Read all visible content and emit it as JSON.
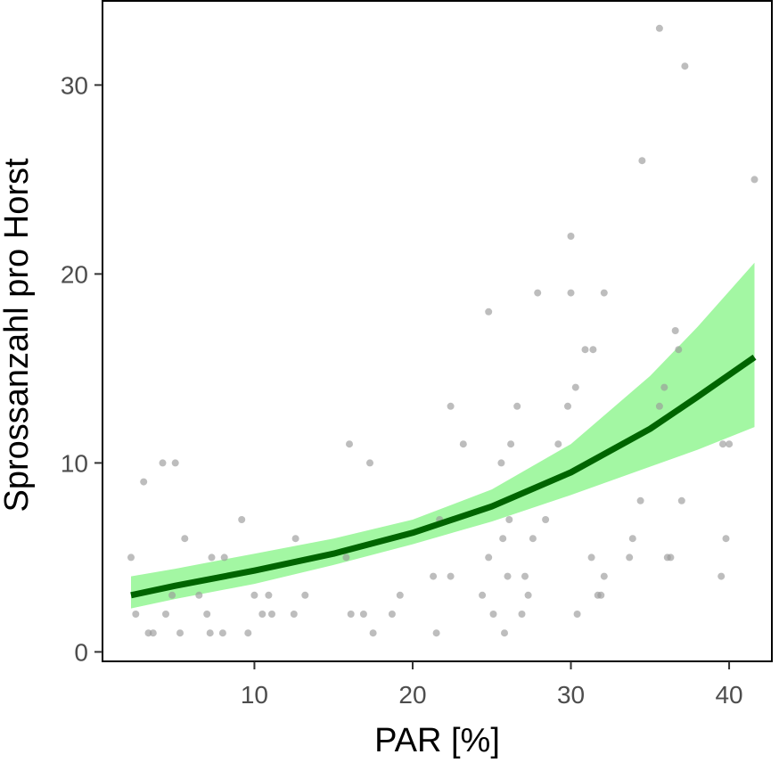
{
  "chart_data": {
    "type": "scatter",
    "xlabel": "PAR [%]",
    "ylabel": "Sprossanzahl pro Horst",
    "xlim": [
      0.4,
      42.7
    ],
    "ylim": [
      -0.5,
      34.5
    ],
    "x_ticks": [
      10,
      20,
      30,
      40
    ],
    "y_ticks": [
      0,
      10,
      20,
      30
    ],
    "grid": false,
    "colors": {
      "points": "#999999",
      "fit_line": "#006400",
      "ribbon": "#a3f7a3",
      "frame": "#000000"
    },
    "fit": {
      "x": [
        2.2,
        5,
        10,
        15,
        20,
        25,
        30,
        35,
        38,
        41.6
      ],
      "y": [
        3.0,
        3.5,
        4.3,
        5.2,
        6.3,
        7.7,
        9.5,
        11.8,
        13.5,
        15.6
      ],
      "lower": [
        2.3,
        2.8,
        3.6,
        4.6,
        5.7,
        6.9,
        8.3,
        9.8,
        10.7,
        11.9
      ],
      "upper": [
        4.0,
        4.4,
        5.2,
        6.0,
        7.0,
        8.6,
        11.0,
        14.6,
        17.2,
        20.6
      ]
    },
    "points": [
      [
        2.2,
        5
      ],
      [
        2.5,
        2
      ],
      [
        3.0,
        9
      ],
      [
        3.3,
        1
      ],
      [
        3.6,
        1
      ],
      [
        4.2,
        10
      ],
      [
        4.4,
        2
      ],
      [
        4.8,
        3
      ],
      [
        5.0,
        10
      ],
      [
        5.3,
        1
      ],
      [
        5.6,
        6
      ],
      [
        6.5,
        3
      ],
      [
        7.0,
        2
      ],
      [
        7.2,
        1
      ],
      [
        7.3,
        5
      ],
      [
        8.0,
        1
      ],
      [
        8.1,
        5
      ],
      [
        9.2,
        7
      ],
      [
        9.6,
        1
      ],
      [
        10.0,
        3
      ],
      [
        10.5,
        2
      ],
      [
        10.9,
        3
      ],
      [
        11.1,
        2
      ],
      [
        12.5,
        2
      ],
      [
        12.6,
        6
      ],
      [
        13.2,
        3
      ],
      [
        15.8,
        5
      ],
      [
        16.0,
        11
      ],
      [
        16.1,
        2
      ],
      [
        16.9,
        2
      ],
      [
        17.3,
        10
      ],
      [
        17.5,
        1
      ],
      [
        18.7,
        2
      ],
      [
        19.2,
        3
      ],
      [
        21.3,
        4
      ],
      [
        21.5,
        1
      ],
      [
        21.7,
        7
      ],
      [
        22.4,
        4
      ],
      [
        22.4,
        13
      ],
      [
        23.2,
        11
      ],
      [
        24.4,
        3
      ],
      [
        24.8,
        5
      ],
      [
        24.8,
        18
      ],
      [
        25.1,
        2
      ],
      [
        25.6,
        10
      ],
      [
        25.7,
        6
      ],
      [
        25.8,
        1
      ],
      [
        26.0,
        4
      ],
      [
        26.1,
        7
      ],
      [
        26.2,
        11
      ],
      [
        26.6,
        13
      ],
      [
        26.9,
        2
      ],
      [
        27.1,
        4
      ],
      [
        27.3,
        3
      ],
      [
        27.6,
        6
      ],
      [
        27.9,
        19
      ],
      [
        28.4,
        7
      ],
      [
        29.2,
        11
      ],
      [
        29.8,
        13
      ],
      [
        30.0,
        19
      ],
      [
        30.0,
        22
      ],
      [
        30.3,
        14
      ],
      [
        30.4,
        2
      ],
      [
        30.9,
        16
      ],
      [
        31.3,
        5
      ],
      [
        31.4,
        16
      ],
      [
        31.7,
        3
      ],
      [
        31.9,
        3
      ],
      [
        32.1,
        4
      ],
      [
        32.1,
        19
      ],
      [
        33.7,
        5
      ],
      [
        33.9,
        6
      ],
      [
        34.4,
        8
      ],
      [
        34.5,
        26
      ],
      [
        35.6,
        13
      ],
      [
        35.6,
        33
      ],
      [
        35.9,
        14
      ],
      [
        36.1,
        5
      ],
      [
        36.3,
        5
      ],
      [
        36.6,
        17
      ],
      [
        36.8,
        16
      ],
      [
        37.0,
        8
      ],
      [
        37.2,
        31
      ],
      [
        39.5,
        4
      ],
      [
        39.6,
        11
      ],
      [
        39.8,
        6
      ],
      [
        40.0,
        11
      ],
      [
        41.6,
        25
      ]
    ]
  }
}
